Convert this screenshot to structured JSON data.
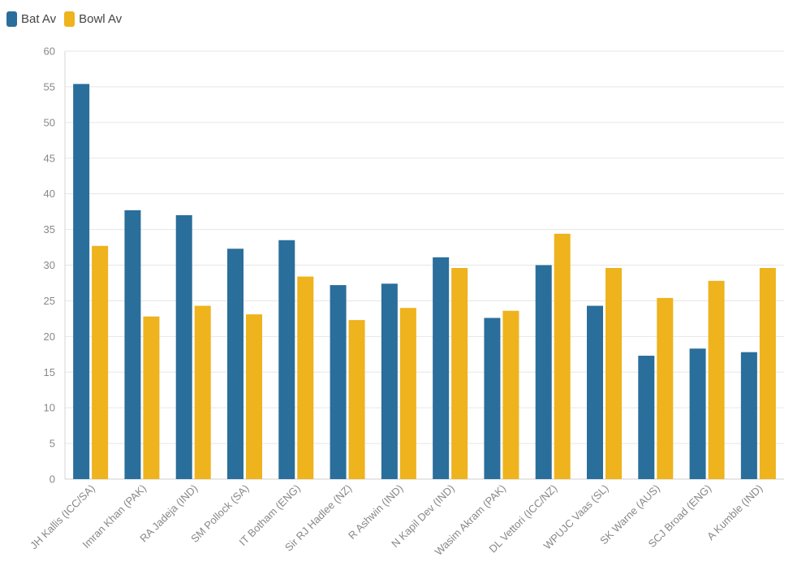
{
  "chart_data": {
    "type": "bar",
    "categories": [
      "JH Kallis (ICC/SA)",
      "Imran Khan (PAK)",
      "RA Jadeja (IND)",
      "SM Pollock (SA)",
      "IT Botham (ENG)",
      "Sir RJ Hadlee (NZ)",
      "R Ashwin (IND)",
      "N Kapil Dev (IND)",
      "Wasim Akram (PAK)",
      "DL Vettori (ICC/NZ)",
      "WPUJC Vaas (SL)",
      "SK Warne (AUS)",
      "SCJ Broad (ENG)",
      "A Kumble (IND)"
    ],
    "series": [
      {
        "name": "Bat Av",
        "color": "#2a6e9b",
        "values": [
          55.4,
          37.7,
          37.0,
          32.3,
          33.5,
          27.2,
          27.4,
          31.1,
          22.6,
          30.0,
          24.3,
          17.3,
          18.3,
          17.8
        ]
      },
      {
        "name": "Bowl Av",
        "color": "#eeb31d",
        "values": [
          32.7,
          22.8,
          24.3,
          23.1,
          28.4,
          22.3,
          24.0,
          29.6,
          23.6,
          34.4,
          29.6,
          25.4,
          27.8,
          29.6
        ]
      }
    ],
    "yticks": [
      0,
      5,
      10,
      15,
      20,
      25,
      30,
      35,
      40,
      45,
      50,
      55,
      60
    ],
    "ylim": [
      0,
      60
    ],
    "grid": true,
    "legend_position": "top-left",
    "title": "",
    "xlabel": "",
    "ylabel": ""
  }
}
